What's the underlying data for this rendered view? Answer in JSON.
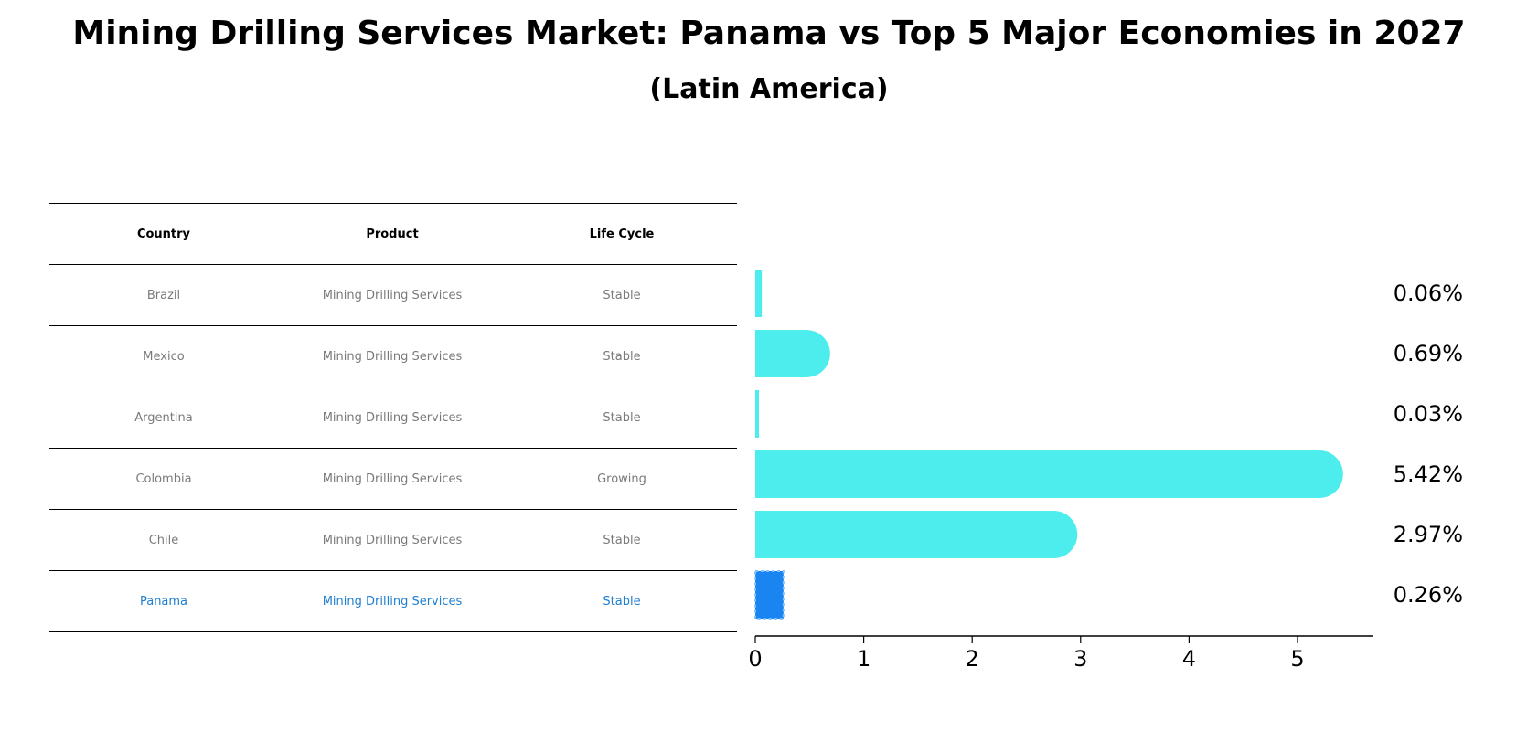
{
  "header": {
    "title": "Mining Drilling Services Market: Panama vs Top 5 Major Economies in 2027",
    "subtitle": "(Latin America)"
  },
  "table": {
    "columns": [
      "Country",
      "Product",
      "Life Cycle"
    ],
    "rows": [
      {
        "country": "Brazil",
        "product": "Mining Drilling Services",
        "life_cycle": "Stable"
      },
      {
        "country": "Mexico",
        "product": "Mining Drilling Services",
        "life_cycle": "Stable"
      },
      {
        "country": "Argentina",
        "product": "Mining Drilling Services",
        "life_cycle": "Stable"
      },
      {
        "country": "Colombia",
        "product": "Mining Drilling Services",
        "life_cycle": "Growing"
      },
      {
        "country": "Chile",
        "product": "Mining Drilling Services",
        "life_cycle": "Stable"
      },
      {
        "country": "Panama",
        "product": "Mining Drilling Services",
        "life_cycle": "Stable"
      }
    ]
  },
  "chart_data": {
    "type": "bar",
    "orientation": "horizontal",
    "categories": [
      "Brazil",
      "Mexico",
      "Argentina",
      "Colombia",
      "Chile",
      "Panama"
    ],
    "values": [
      0.06,
      0.69,
      0.03,
      5.42,
      2.97,
      0.26
    ],
    "value_labels": [
      "0.06%",
      "0.69%",
      "0.03%",
      "5.42%",
      "2.97%",
      "0.26%"
    ],
    "xlim": [
      0,
      5.7
    ],
    "xticks": [
      0,
      1,
      2,
      3,
      4,
      5
    ],
    "grid": false,
    "colors": {
      "default": "#4deded",
      "highlight": "#1a84f0",
      "highlight_border": "#7cc3ff"
    },
    "highlight_index": 5
  }
}
